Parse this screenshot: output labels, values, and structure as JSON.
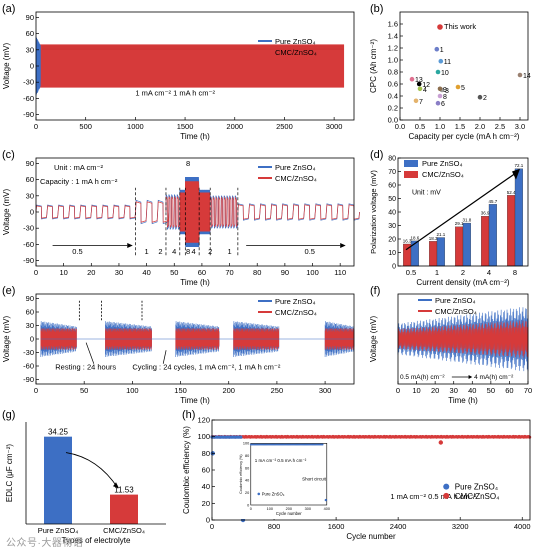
{
  "colors": {
    "blue": "#3d6fc4",
    "red": "#d63a3a",
    "axis": "#000000",
    "red_dark": "#b52424"
  },
  "watermark": "公众号·大器物语",
  "chart_data": [
    {
      "id": "a",
      "panel_label": "(a)",
      "type": "line",
      "title": "",
      "xlabel": "Time (h)",
      "ylabel": "Voltage (mV)",
      "xlim": [
        0,
        3200
      ],
      "ylim": [
        -100,
        100
      ],
      "xticks": [
        0,
        500,
        1000,
        1500,
        2000,
        2500,
        3000
      ],
      "yticks": [
        -90,
        -60,
        -30,
        0,
        30,
        60,
        90
      ],
      "annotations": [
        {
          "text": "1 mA cm⁻²   1 mA h cm⁻²"
        }
      ],
      "series": [
        {
          "name": "Pure ZnSO₄",
          "end_hour": 45,
          "amplitude_mv": 55
        },
        {
          "name": "CMC/ZnSO₄",
          "end_hour": 3100,
          "amplitude_mv": 40
        }
      ]
    },
    {
      "id": "b",
      "panel_label": "(b)",
      "type": "scatter",
      "title": "",
      "xlabel": "Capacity per cycle (mA h cm⁻²)",
      "ylabel": "CPC (Ah cm⁻²)",
      "xlim": [
        0,
        3.2
      ],
      "ylim": [
        0,
        1.8
      ],
      "xticks": [
        0,
        0.5,
        1.0,
        1.5,
        2.0,
        2.5,
        3.0
      ],
      "yticks": [
        0,
        0.2,
        0.4,
        0.6,
        0.8,
        1.0,
        1.2,
        1.4,
        1.6
      ],
      "points": [
        {
          "label": "This work",
          "x": 1.0,
          "y": 1.55,
          "color": "#d63a3a"
        },
        {
          "label": "1",
          "x": 0.92,
          "y": 1.18,
          "color": "#6c7ec9"
        },
        {
          "label": "11",
          "x": 1.02,
          "y": 0.98,
          "color": "#5a9ad6"
        },
        {
          "label": "10",
          "x": 0.95,
          "y": 0.8,
          "color": "#2aa7a0"
        },
        {
          "label": "5",
          "x": 1.45,
          "y": 0.55,
          "color": "#e0a030"
        },
        {
          "label": "3",
          "x": 1.05,
          "y": 0.5,
          "color": "#9e9e9e"
        },
        {
          "label": "9",
          "x": 1.0,
          "y": 0.52,
          "color": "#8c6e4e"
        },
        {
          "label": "4",
          "x": 0.5,
          "y": 0.52,
          "color": "#a3c24e"
        },
        {
          "label": "8",
          "x": 1.0,
          "y": 0.4,
          "color": "#c9a0d4"
        },
        {
          "label": "12",
          "x": 0.48,
          "y": 0.6,
          "color": "#000000"
        },
        {
          "label": "13",
          "x": 0.3,
          "y": 0.68,
          "color": "#e07090"
        },
        {
          "label": "7",
          "x": 0.4,
          "y": 0.32,
          "color": "#e4b36c"
        },
        {
          "label": "6",
          "x": 0.95,
          "y": 0.28,
          "color": "#8a7ec6"
        },
        {
          "label": "2",
          "x": 2.0,
          "y": 0.38,
          "color": "#555555"
        },
        {
          "label": "14",
          "x": 3.0,
          "y": 0.75,
          "color": "#9a8070"
        }
      ]
    },
    {
      "id": "c",
      "panel_label": "(c)",
      "type": "line",
      "title": "",
      "xlabel": "Time (h)",
      "ylabel": "Voltage (mV)",
      "xlim": [
        0,
        115
      ],
      "ylim": [
        -100,
        100
      ],
      "xticks": [
        0,
        10,
        20,
        30,
        40,
        50,
        60,
        70,
        80,
        90,
        100,
        110
      ],
      "yticks": [
        -90,
        -60,
        -30,
        0,
        30,
        60,
        90
      ],
      "annotations": [
        {
          "text": "Unit : mA cm⁻²"
        },
        {
          "text": "Capacity : 1 mA h cm⁻²"
        }
      ],
      "segment_labels": [
        {
          "text": "0.5",
          "x": 15
        },
        {
          "text": "1",
          "x": 40
        },
        {
          "text": "2",
          "x": 45
        },
        {
          "text": "4",
          "x": 50
        },
        {
          "text": "8",
          "x": 55
        },
        {
          "text": "4",
          "x": 57
        },
        {
          "text": "2",
          "x": 63
        },
        {
          "text": "1",
          "x": 70
        },
        {
          "text": "0.5",
          "x": 99
        }
      ],
      "top_label": {
        "text": "8",
        "x": 55
      },
      "segment_boundaries": [
        36,
        47,
        52,
        54,
        59,
        63,
        73
      ],
      "series": [
        {
          "name": "Pure ZnSO₄"
        },
        {
          "name": "CMC/ZnSO₄"
        }
      ]
    },
    {
      "id": "d",
      "panel_label": "(d)",
      "type": "bar",
      "title": "",
      "xlabel": "Current density (mA cm⁻²)",
      "ylabel": "Polarization voltage (mV)",
      "ylim": [
        0,
        80
      ],
      "yticks": [
        0,
        10,
        20,
        30,
        40,
        50,
        60,
        70,
        80
      ],
      "categories": [
        "0.5",
        "1",
        "2",
        "4",
        "8"
      ],
      "annotations": [
        {
          "text": "Unit : mV"
        }
      ],
      "series": [
        {
          "name": "Pure ZnSO₄",
          "values": [
            16.3,
            18.3,
            29.1,
            36.9,
            52.4
          ]
        },
        {
          "name": "CMC/ZnSO₄",
          "values": [
            18.6,
            21.1,
            31.8,
            45.7,
            72.1
          ]
        }
      ]
    },
    {
      "id": "e",
      "panel_label": "(e)",
      "type": "line",
      "title": "",
      "xlabel": "Time (h)",
      "ylabel": "Voltage (mV)",
      "xlim": [
        0,
        330
      ],
      "ylim": [
        -100,
        100
      ],
      "xticks": [
        0,
        50,
        100,
        150,
        200,
        250,
        300
      ],
      "yticks": [
        -90,
        -60,
        -30,
        0,
        30,
        60,
        90
      ],
      "annotations": [
        {
          "text": "Resting : 24  hours"
        },
        {
          "text": "Cycling : 24 cycles, 1 mA cm⁻², 1 mA h cm⁻²"
        }
      ],
      "cycling_blocks": [
        [
          5,
          42
        ],
        [
          72,
          120
        ],
        [
          145,
          190
        ],
        [
          205,
          252
        ],
        [
          300,
          330
        ]
      ],
      "series": [
        {
          "name": "Pure ZnSO₄"
        },
        {
          "name": "CMC/ZnSO₄"
        }
      ]
    },
    {
      "id": "f",
      "panel_label": "(f)",
      "type": "line",
      "title": "",
      "xlabel": "Time (h)",
      "ylabel": "Voltage (mV)",
      "xlim": [
        0,
        70
      ],
      "ylim": [
        -130,
        130
      ],
      "xticks": [
        0,
        10,
        20,
        30,
        40,
        50,
        60,
        70
      ],
      "yticks": [],
      "annotations": [
        {
          "text": "0.5 mA(h) cm⁻²"
        },
        {
          "text": "4 mA(h) cm⁻²"
        }
      ],
      "series": [
        {
          "name": "Pure ZnSO₄",
          "start_amplitude_mv": 45,
          "end_amplitude_mv": 95
        },
        {
          "name": "CMC/ZnSO₄",
          "start_amplitude_mv": 30,
          "end_amplitude_mv": 55
        }
      ]
    },
    {
      "id": "g",
      "panel_label": "(g)",
      "type": "bar",
      "title": "",
      "xlabel": "Types of electrolyte",
      "ylabel": "EDLC (μF cm⁻²)",
      "ylim": [
        0,
        40
      ],
      "categories": [
        "Pure ZnSO₄",
        "CMC/ZnSO₄"
      ],
      "values": [
        34.25,
        11.53
      ]
    },
    {
      "id": "h",
      "panel_label": "(h)",
      "type": "scatter",
      "title": "",
      "xlabel": "Cycle number",
      "ylabel": "Coulombic efficiency (%)",
      "xlim": [
        0,
        4100
      ],
      "ylim": [
        0,
        120
      ],
      "xticks": [
        0,
        800,
        1600,
        2400,
        3200,
        4000
      ],
      "yticks": [
        0,
        20,
        40,
        60,
        80,
        100,
        120
      ],
      "annotations": [
        {
          "text": "1 mA cm⁻²   0.5 mA h cm⁻²"
        }
      ],
      "series": [
        {
          "name": "Pure ZnSO₄",
          "plateau_until": 380,
          "plateau": 99.5,
          "drops": [
            [
              10,
              80
            ],
            [
              400,
              0
            ]
          ]
        },
        {
          "name": "CMC/ZnSO₄",
          "plateau_until": 4100,
          "plateau": 99.8,
          "drops": [
            [
              2950,
              93
            ]
          ]
        }
      ],
      "inset": {
        "xlabel": "Cycle number",
        "ylabel": "Coulombic efficiency (%)",
        "xlim": [
          0,
          400
        ],
        "ylim": [
          0,
          100
        ],
        "xticks": [
          0,
          100,
          200,
          300,
          400
        ],
        "yticks": [
          0,
          20,
          40,
          60,
          80,
          100
        ],
        "legend": "Pure ZnSO₄",
        "annotations": [
          {
            "text": "1 mA cm⁻²   0.5 mA h cm⁻²"
          },
          {
            "text": "Short circuit"
          }
        ]
      }
    }
  ]
}
